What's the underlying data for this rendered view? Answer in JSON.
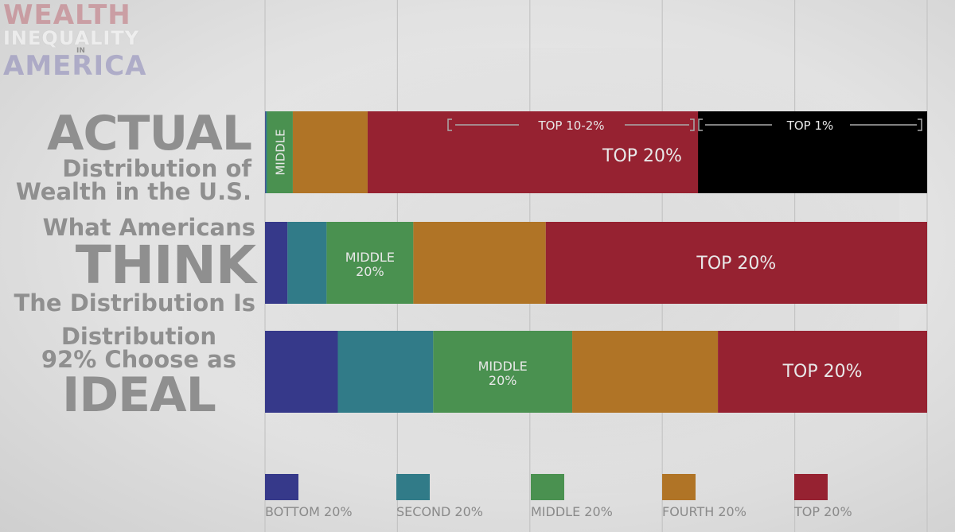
{
  "logo": {
    "line1": "WEALTH",
    "line2": "INEQUALITY",
    "line3": "IN",
    "line4": "AMERICA"
  },
  "labels": {
    "actual": [
      "ACTUAL",
      "Distribution of",
      "Wealth in the U.S."
    ],
    "think": [
      "What Americans",
      "THINK",
      "The Distribution Is"
    ],
    "ideal": [
      "Distribution",
      "92% Choose as",
      "IDEAL"
    ]
  },
  "colors": {
    "bottom": "#36398a",
    "second": "#317b88",
    "middle": "#4a9150",
    "fourth": "#b07426",
    "top": "#962231",
    "top1": "#000000"
  },
  "chart_data": {
    "type": "bar",
    "orientation": "horizontal",
    "stacked": true,
    "xlim": [
      0,
      100
    ],
    "categories": [
      "ACTUAL",
      "THINK",
      "IDEAL"
    ],
    "series": [
      {
        "name": "BOTTOM 20%",
        "values": [
          0.1,
          3.4,
          11.0
        ]
      },
      {
        "name": "SECOND 20%",
        "values": [
          0.2,
          5.9,
          14.4
        ]
      },
      {
        "name": "MIDDLE 20%",
        "values": [
          3.9,
          13.1,
          21.0
        ]
      },
      {
        "name": "FOURTH 20%",
        "values": [
          11.3,
          20.0,
          22.0
        ]
      },
      {
        "name": "TOP 20%",
        "values": [
          84.5,
          57.6,
          31.6
        ]
      }
    ],
    "actual_top_split": {
      "top_10_2_label": "TOP 10-2%",
      "top_1_label": "TOP 1%",
      "top_1_share": 34.6
    },
    "segment_labels": {
      "actual_middle": "MIDDLE",
      "actual_top": "TOP 20%",
      "think_middle": [
        "MIDDLE",
        "20%"
      ],
      "think_top": "TOP 20%",
      "ideal_middle": [
        "MIDDLE",
        "20%"
      ],
      "ideal_top": "TOP 20%"
    },
    "legend": [
      "BOTTOM 20%",
      "SECOND 20%",
      "MIDDLE 20%",
      "FOURTH 20%",
      "TOP 20%"
    ],
    "legend_placement": "bottom",
    "grid": true
  }
}
